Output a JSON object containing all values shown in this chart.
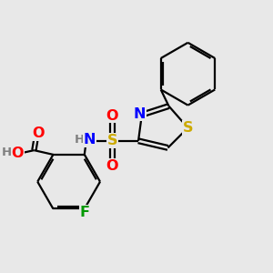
{
  "bg_color": "#e8e8e8",
  "atom_colors": {
    "N": "#0000ff",
    "O": "#ff0000",
    "S_th": "#ccaa00",
    "S_su": "#ccaa00",
    "F": "#009900",
    "H": "#7f7f7f",
    "C": "#000000"
  },
  "bond_color": "#000000",
  "bond_lw": 1.6,
  "dbo": 0.025
}
